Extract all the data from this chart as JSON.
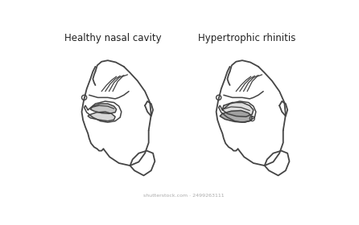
{
  "title_left": "Healthy nasal cavity",
  "title_right": "Hypertrophic rhinitis",
  "bg_color": "#ffffff",
  "line_color": "#444444",
  "line_width": 1.3,
  "fill_color_healthy": "#b0b0b0",
  "fill_color_hyper": "#808080",
  "figsize": [
    4.46,
    2.8
  ],
  "dpi": 100,
  "watermark": "shutterstock.com · 2499263111"
}
